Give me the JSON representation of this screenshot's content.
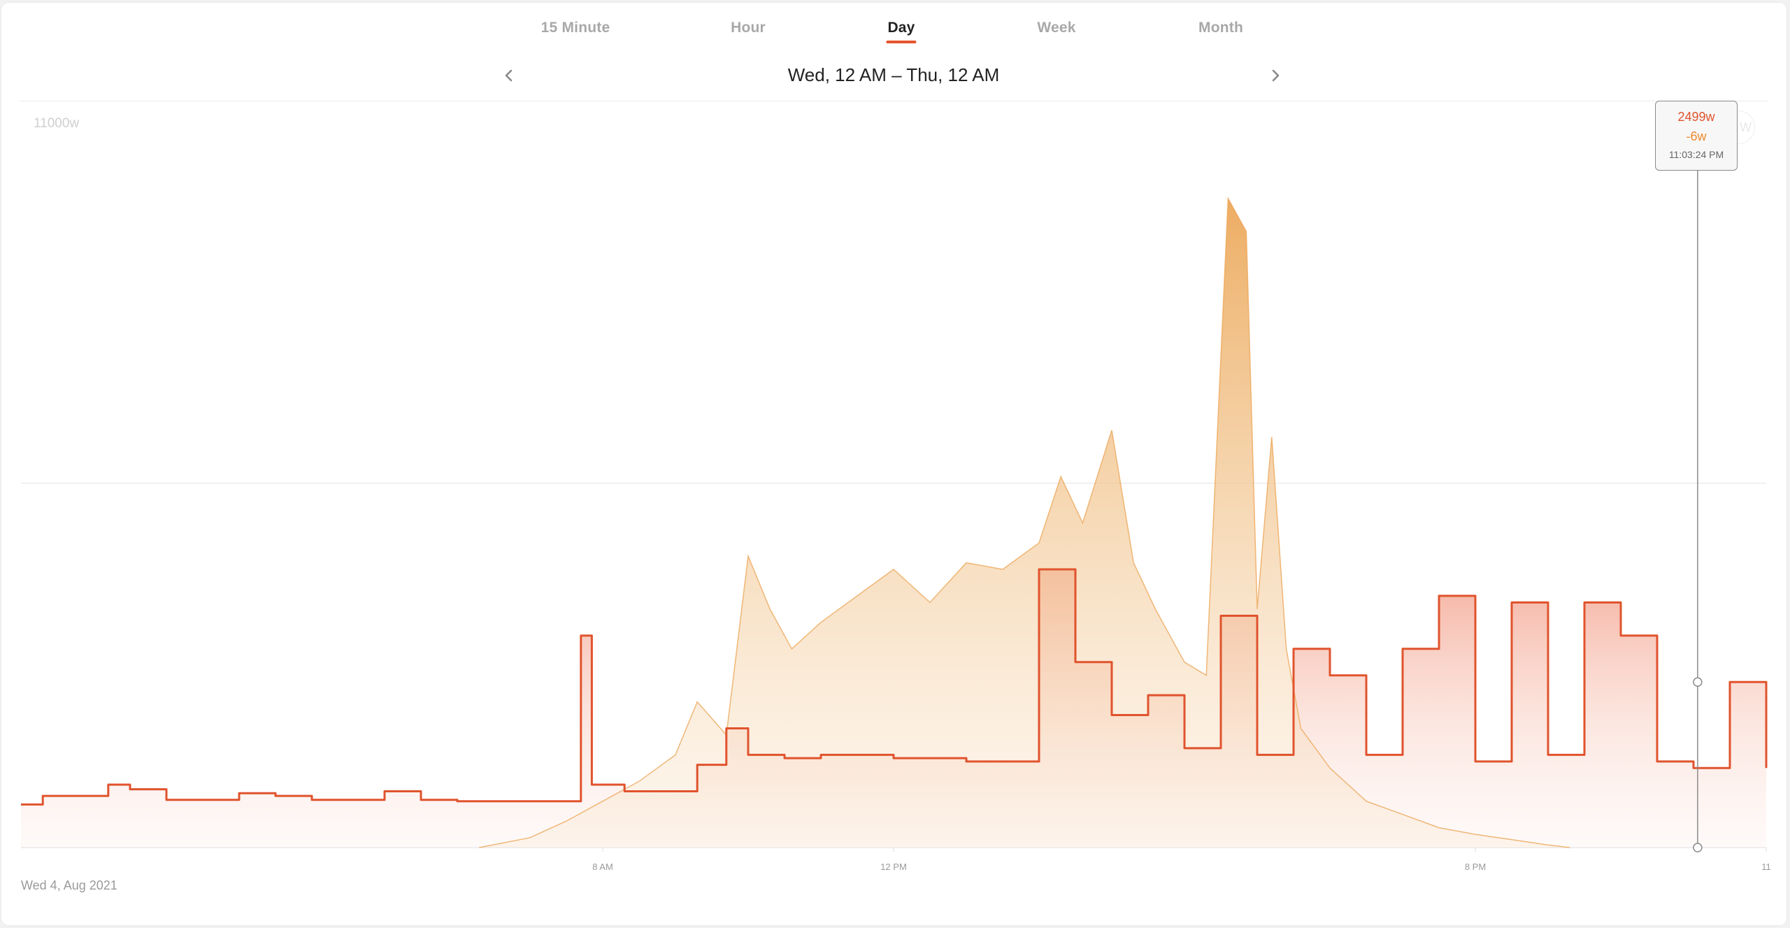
{
  "tabs": {
    "items": [
      "15 Minute",
      "Hour",
      "Day",
      "Week",
      "Month"
    ],
    "active": "Day"
  },
  "range": {
    "label": "Wed, 12 AM – Thu, 12 AM"
  },
  "date_label": "Wed 4, Aug 2021",
  "tooltip": {
    "consumption": "2499w",
    "solar": "-6w",
    "time": "11:03:24 PM"
  },
  "colors": {
    "accent": "#e5562e",
    "consumption_line": "#e0532d",
    "solar_fill": "#f2c58f",
    "solar_peak": "#eca85a"
  },
  "chart_data": {
    "type": "area",
    "y_max_label": "11000w",
    "ylim": [
      0,
      11000
    ],
    "xlim_hours": [
      0,
      24
    ],
    "x_tick_labels": [
      "8 AM",
      "12 PM",
      "8 PM",
      "11"
    ],
    "x_tick_hours": [
      8,
      12,
      20,
      24
    ],
    "grid": true,
    "legend": "none",
    "series": [
      {
        "key": "consumption",
        "x": [
          0,
          0.3,
          0.8,
          1.2,
          1.5,
          2.0,
          2.5,
          3.0,
          3.5,
          4.0,
          4.5,
          5.0,
          5.5,
          6.0,
          6.5,
          7.0,
          7.5,
          7.7,
          7.85,
          8.0,
          8.3,
          8.8,
          9.3,
          9.7,
          10.0,
          10.5,
          11.0,
          11.5,
          12.0,
          12.5,
          13.0,
          13.5,
          13.8,
          14.0,
          14.5,
          15.0,
          15.5,
          16.0,
          16.5,
          17.0,
          17.5,
          18.0,
          18.5,
          19.0,
          19.5,
          20.0,
          20.5,
          21.0,
          21.5,
          22.0,
          22.5,
          23.0,
          23.5,
          24.0
        ],
        "y": [
          650,
          780,
          780,
          950,
          880,
          720,
          720,
          820,
          780,
          720,
          720,
          850,
          720,
          700,
          700,
          700,
          700,
          3200,
          950,
          950,
          850,
          850,
          1250,
          1800,
          1400,
          1350,
          1400,
          1400,
          1350,
          1350,
          1300,
          1300,
          1300,
          4200,
          2800,
          2000,
          2300,
          1500,
          3500,
          1400,
          3000,
          2600,
          1400,
          3000,
          3800,
          1300,
          3700,
          1400,
          3700,
          3200,
          1300,
          1200,
          2500,
          1200
        ]
      },
      {
        "key": "solar",
        "x": [
          6.3,
          7.0,
          7.5,
          8.0,
          8.5,
          9.0,
          9.3,
          9.7,
          10.0,
          10.3,
          10.6,
          11.0,
          11.5,
          12.0,
          12.5,
          13.0,
          13.5,
          14.0,
          14.3,
          14.6,
          15.0,
          15.3,
          15.6,
          16.0,
          16.3,
          16.6,
          16.85,
          17.0,
          17.2,
          17.4,
          17.6,
          18.0,
          18.5,
          19.0,
          19.5,
          20.0,
          20.5,
          21.0,
          21.3
        ],
        "y": [
          0,
          150,
          400,
          700,
          1000,
          1400,
          2200,
          1700,
          4400,
          3600,
          3000,
          3400,
          3800,
          4200,
          3700,
          4300,
          4200,
          4600,
          5600,
          4900,
          6300,
          4300,
          3600,
          2800,
          2600,
          9800,
          9300,
          3600,
          6200,
          3000,
          1800,
          1200,
          700,
          500,
          300,
          200,
          120,
          40,
          0
        ]
      }
    ]
  }
}
